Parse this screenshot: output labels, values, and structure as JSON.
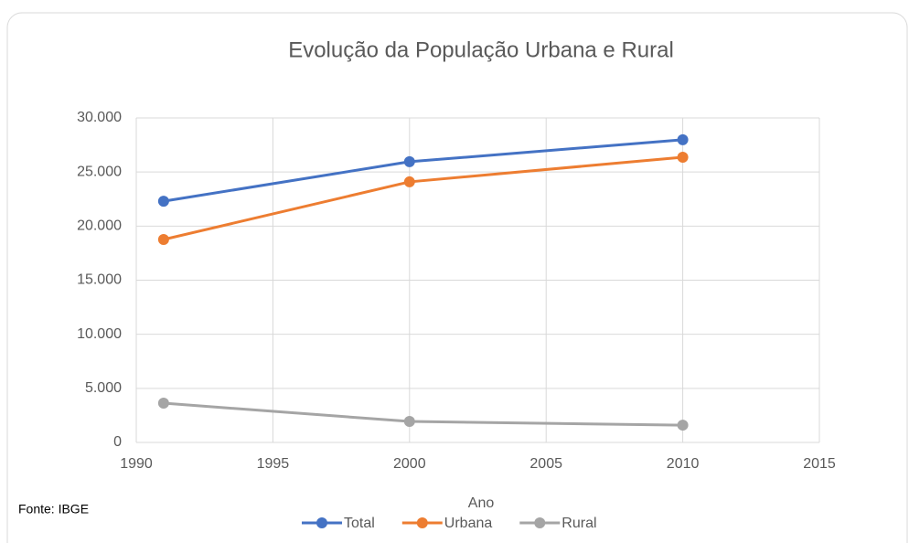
{
  "chart_data": {
    "type": "line",
    "title": "Evolução da População Urbana e Rural",
    "x_label": "Ano",
    "source": "Fonte: IBGE",
    "x": [
      1991,
      2000,
      2010
    ],
    "series": [
      {
        "name": "Total",
        "color": "#4472c4",
        "values": [
          22300,
          25950,
          27980
        ]
      },
      {
        "name": "Urbana",
        "color": "#ed7d31",
        "values": [
          18760,
          24090,
          26370
        ]
      },
      {
        "name": "Rural",
        "color": "#a5a5a5",
        "values": [
          3630,
          1940,
          1600
        ]
      }
    ],
    "xlim": [
      1990,
      2015
    ],
    "xticks": [
      1990,
      1995,
      2000,
      2005,
      2010,
      2015
    ],
    "ylim": [
      0,
      30000
    ],
    "yticks": [
      0,
      {
        "value": 5000,
        "label": "5.000"
      },
      {
        "value": 10000,
        "label": "10.000"
      },
      {
        "value": 15000,
        "label": "15.000"
      },
      {
        "value": 20000,
        "label": "20.000"
      },
      {
        "value": 25000,
        "label": "25.000"
      },
      {
        "value": 30000,
        "label": "30.000"
      }
    ],
    "grid": true
  }
}
